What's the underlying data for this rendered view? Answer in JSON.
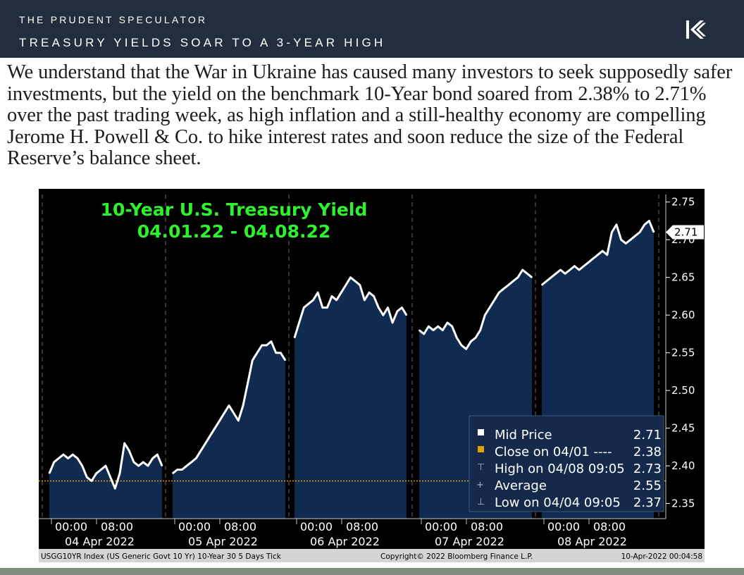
{
  "header": {
    "kicker": "THE PRUDENT SPECULATOR",
    "title": "TREASURY YIELDS SOAR TO A 3-YEAR HIGH",
    "logo_icon": "tps-logo-icon"
  },
  "body_text": "We understand that the War in Ukraine has caused many investors to seek supposedly safer investments, but the yield on the benchmark 10-Year bond soared from 2.38% to 2.71% over the past trading week, as high inflation and a still-healthy economy are compelling Jerome H. Powell & Co. to hike interest rates and soon reduce the size of the Federal Reserve’s balance sheet.",
  "chart_data": {
    "type": "area",
    "title": "10-Year U.S. Treasury Yield",
    "subtitle": "04.01.22 - 04.08.22",
    "ylim": [
      2.33,
      2.76
    ],
    "y_ticks": [
      "2.75",
      "2.70",
      "2.65",
      "2.60",
      "2.55",
      "2.50",
      "2.45",
      "2.40",
      "2.35"
    ],
    "y_tick_values": [
      2.75,
      2.7,
      2.65,
      2.6,
      2.55,
      2.5,
      2.45,
      2.4,
      2.35
    ],
    "last_value_label": "2.71",
    "last_value": 2.71,
    "reference_line": {
      "value": 2.38
    },
    "x_tick_labels": [
      {
        "time": "00:00",
        "date": "04 Apr 2022",
        "time2": "08:00"
      },
      {
        "time": "00:00",
        "date": "05 Apr 2022",
        "time2": "08:00"
      },
      {
        "time": "00:00",
        "date": "06 Apr 2022",
        "time2": "08:00"
      },
      {
        "time": "00:00",
        "date": "07 Apr 2022",
        "time2": "08:00"
      },
      {
        "time": "00:00",
        "date": "08 Apr 2022",
        "time2": "08:00"
      }
    ],
    "sessions": [
      {
        "date": "04 Apr 2022",
        "values": [
          2.39,
          2.405,
          2.41,
          2.415,
          2.41,
          2.415,
          2.41,
          2.4,
          2.385,
          2.38,
          2.39,
          2.395,
          2.4,
          2.385,
          2.37,
          2.39,
          2.43,
          2.42,
          2.405,
          2.4,
          2.405,
          2.4,
          2.41,
          2.415,
          2.4
        ]
      },
      {
        "date": "05 Apr 2022",
        "values": [
          2.39,
          2.395,
          2.395,
          2.4,
          2.405,
          2.41,
          2.42,
          2.43,
          2.44,
          2.45,
          2.46,
          2.47,
          2.48,
          2.47,
          2.46,
          2.48,
          2.51,
          2.54,
          2.55,
          2.56,
          2.56,
          2.565,
          2.55,
          2.55,
          2.54
        ]
      },
      {
        "date": "06 Apr 2022",
        "values": [
          2.57,
          2.59,
          2.61,
          2.615,
          2.62,
          2.63,
          2.61,
          2.61,
          2.625,
          2.62,
          2.63,
          2.64,
          2.65,
          2.645,
          2.64,
          2.62,
          2.63,
          2.625,
          2.61,
          2.6,
          2.61,
          2.59,
          2.605,
          2.61,
          2.6
        ]
      },
      {
        "date": "07 Apr 2022",
        "values": [
          2.58,
          2.575,
          2.585,
          2.58,
          2.585,
          2.58,
          2.59,
          2.585,
          2.57,
          2.56,
          2.555,
          2.565,
          2.57,
          2.58,
          2.6,
          2.61,
          2.62,
          2.63,
          2.635,
          2.64,
          2.645,
          2.65,
          2.66,
          2.655,
          2.65
        ]
      },
      {
        "date": "08 Apr 2022",
        "values": [
          2.64,
          2.645,
          2.65,
          2.655,
          2.66,
          2.655,
          2.66,
          2.665,
          2.66,
          2.665,
          2.67,
          2.675,
          2.68,
          2.685,
          2.68,
          2.71,
          2.72,
          2.7,
          2.695,
          2.7,
          2.705,
          2.71,
          2.72,
          2.725,
          2.71
        ]
      }
    ],
    "legend": {
      "placement": "bottom-right",
      "items": [
        {
          "label": "Mid Price",
          "value": "2.71"
        },
        {
          "label": "Close on 04/01 ---- ",
          "value": "2.38"
        },
        {
          "label": "High on 04/08 09:05",
          "value": "2.73"
        },
        {
          "label": "Average",
          "value": "2.55"
        },
        {
          "label": "Low on 04/04 09:05",
          "value": "2.37"
        }
      ]
    },
    "footer_left": "USGG10YR Index (US Generic Govt 10 Yr) 10-Year 30 5 Days  Tick",
    "footer_center": "Copyright© 2022 Bloomberg Finance L.P.",
    "footer_right": "10-Apr-2022 00:04:58",
    "colors": {
      "background": "#000000",
      "line": "#ffffff",
      "fill": "#112b50",
      "title": "#2ef22e",
      "reference": "#e0a000",
      "axis_text": "#ffffff"
    }
  }
}
